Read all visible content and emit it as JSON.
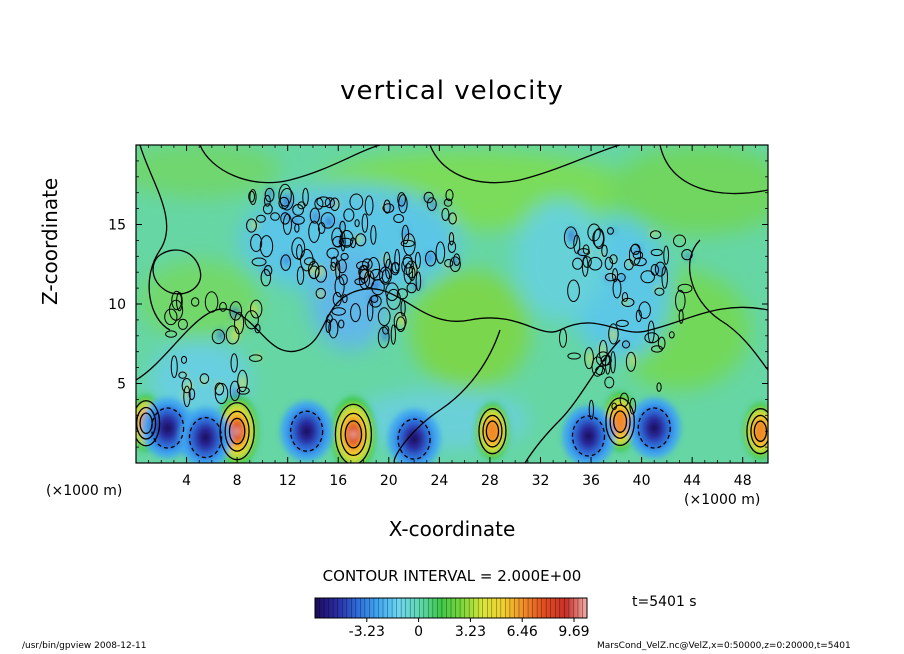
{
  "chart_data": {
    "type": "heatmap",
    "title": "vertical velocity",
    "xlabel": "X-coordinate",
    "ylabel": "Z-coordinate",
    "x_unit": "(×1000 m)",
    "x_ticks": [
      4,
      8,
      12,
      16,
      20,
      24,
      28,
      32,
      36,
      40,
      44,
      48
    ],
    "y_ticks": [
      5,
      10,
      15
    ],
    "xlim": [
      0,
      50
    ],
    "ylim": [
      0,
      20
    ],
    "contour_interval": "CONTOUR INTERVAL = 2.000E+00",
    "time_label": "t=5401 s",
    "colorbar": {
      "ticks": [
        "-3.23",
        "0",
        "3.23",
        "6.46",
        "9.69"
      ],
      "range": [
        -6.46,
        10.5
      ],
      "colors": [
        "#1a0a5a",
        "#2a2aa0",
        "#2e6ad8",
        "#40a6f0",
        "#6cd6f0",
        "#5ed9b0",
        "#3ec84a",
        "#7ad63a",
        "#d8e63a",
        "#f0d030",
        "#f08a28",
        "#e04a20",
        "#c8302a",
        "#f0b0a8"
      ]
    },
    "updrafts": [
      {
        "x": 0.8,
        "z": 2.5,
        "peak": 7
      },
      {
        "x": 8.0,
        "z": 2.0,
        "peak": 9
      },
      {
        "x": 17.2,
        "z": 1.8,
        "peak": 9.5
      },
      {
        "x": 28.2,
        "z": 2.0,
        "peak": 7
      },
      {
        "x": 38.3,
        "z": 2.6,
        "peak": 7.5
      },
      {
        "x": 49.4,
        "z": 2.0,
        "peak": 7
      }
    ],
    "downdrafts": [
      {
        "x": 2.5,
        "z": 2.2,
        "peak": -5
      },
      {
        "x": 5.5,
        "z": 1.6,
        "peak": -6
      },
      {
        "x": 13.5,
        "z": 2.0,
        "peak": -5
      },
      {
        "x": 22.0,
        "z": 1.5,
        "peak": -5
      },
      {
        "x": 35.8,
        "z": 1.7,
        "peak": -6
      },
      {
        "x": 41.0,
        "z": 2.2,
        "peak": -5
      }
    ],
    "footer_left": "/usr/bin/gpview   2008-12-11",
    "footer_right": "MarsCond_VelZ.nc@VelZ,x=0:50000,z=0:20000,t=5401"
  }
}
